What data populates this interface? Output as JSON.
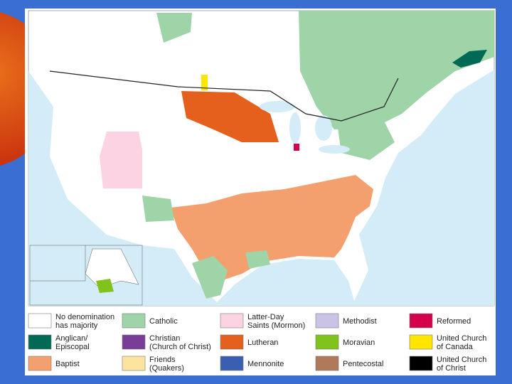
{
  "legend": {
    "items": [
      {
        "lines": [
          "No denomination",
          "has majority"
        ],
        "color": "#ffffff"
      },
      {
        "lines": [
          "Catholic"
        ],
        "color": "#9fd3a8"
      },
      {
        "lines": [
          "Latter-Day",
          "Saints (Mormon)"
        ],
        "color": "#fbd3e3"
      },
      {
        "lines": [
          "Methodist"
        ],
        "color": "#cbc3e6"
      },
      {
        "lines": [
          "Reformed"
        ],
        "color": "#d4004c"
      },
      {
        "lines": [
          "Anglican/",
          "Episcopal"
        ],
        "color": "#006a55"
      },
      {
        "lines": [
          "Christian",
          "(Church of Christ)"
        ],
        "color": "#7a3d97"
      },
      {
        "lines": [
          "Lutheran"
        ],
        "color": "#e4601c"
      },
      {
        "lines": [
          "Moravian"
        ],
        "color": "#80c31c"
      },
      {
        "lines": [
          "United Church",
          "of Canada"
        ],
        "color": "#ffe600"
      },
      {
        "lines": [
          "Baptist"
        ],
        "color": "#f4a06e"
      },
      {
        "lines": [
          "Friends",
          "(Quakers)"
        ],
        "color": "#fde3a0"
      },
      {
        "lines": [
          "Mennonite"
        ],
        "color": "#3b5fb0"
      },
      {
        "lines": [
          "Pentecostal"
        ],
        "color": "#b07a5a"
      },
      {
        "lines": [
          "United Church",
          "of Christ"
        ],
        "color": "#000000"
      }
    ]
  }
}
